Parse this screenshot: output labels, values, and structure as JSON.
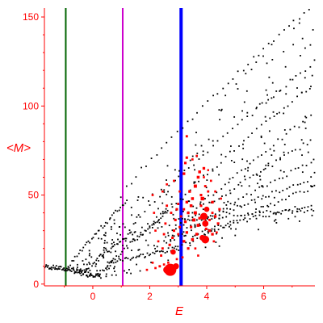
{
  "chart_data": {
    "type": "scatter",
    "title": "",
    "xlabel": "E",
    "ylabel": "<M>",
    "xlim": [
      -1.7,
      7.8
    ],
    "ylim": [
      -1,
      155
    ],
    "x_ticks": [
      0,
      2,
      4,
      6
    ],
    "x_tick_labels": [
      "0",
      "2",
      "4",
      "6"
    ],
    "y_ticks": [
      0,
      50,
      100,
      150
    ],
    "y_tick_labels": [
      "0",
      "50",
      "100",
      "150"
    ],
    "grid": false,
    "legend": "none",
    "axis_color": "#ff0000",
    "vertical_lines": [
      {
        "x": -0.95,
        "color": "#006400"
      },
      {
        "x": 1.05,
        "color": "#cc00cc"
      },
      {
        "x": 3.1,
        "color": "#0000ff"
      }
    ],
    "series": [
      {
        "color": "#000000",
        "marker": "dot",
        "bands": [
          {
            "x0": -1.7,
            "y0": 10,
            "x1": -0.7,
            "y1": 8
          },
          {
            "x0": -0.7,
            "y0": 7.5,
            "x1": 0.3,
            "y1": 4.5
          },
          {
            "x0": -0.9,
            "y0": 8,
            "x1": 1.2,
            "y1": 47
          },
          {
            "x0": -0.4,
            "y0": 6,
            "x1": 1.5,
            "y1": 30
          },
          {
            "x0": 0.2,
            "y0": 5,
            "x1": 2.6,
            "y1": 40
          },
          {
            "x0": 0.6,
            "y0": 12,
            "x1": 3.0,
            "y1": 20
          },
          {
            "x0": 1.0,
            "y0": 50,
            "x1": 7.6,
            "y1": 155
          },
          {
            "x0": 1.5,
            "y0": 35,
            "x1": 7.8,
            "y1": 125
          },
          {
            "x0": 2.0,
            "y0": 30,
            "x1": 7.8,
            "y1": 113
          },
          {
            "x0": 2.5,
            "y0": 25,
            "x1": 7.8,
            "y1": 96
          },
          {
            "x0": 2.8,
            "y0": 28,
            "x1": 7.8,
            "y1": 82
          },
          {
            "x0": 2.6,
            "y0": 22,
            "x1": 7.8,
            "y1": 70
          },
          {
            "x0": 3.2,
            "y0": 30,
            "x1": 7.8,
            "y1": 60
          },
          {
            "x0": 3.0,
            "y0": 20,
            "x1": 7.8,
            "y1": 55
          },
          {
            "x0": 3.6,
            "y0": 28,
            "x1": 7.8,
            "y1": 45
          },
          {
            "x0": 3.0,
            "y0": 36,
            "x1": 7.8,
            "y1": 42
          }
        ],
        "scatter_region": {
          "x": [
            -0.6,
            7.8
          ],
          "y": [
            4,
            150
          ]
        }
      },
      {
        "color": "#ff0000",
        "marker": "square",
        "points": [
          [
            2.72,
            8,
            5.0
          ],
          [
            2.6,
            8,
            3.0
          ],
          [
            2.92,
            10,
            2.5
          ],
          [
            2.82,
            18,
            2.2
          ],
          [
            3.95,
            25,
            3.2
          ],
          [
            3.85,
            26,
            2.4
          ],
          [
            3.9,
            38,
            3.0
          ],
          [
            3.95,
            34,
            2.6
          ],
          [
            4.0,
            42,
            2.2
          ],
          [
            3.85,
            48,
            2.0
          ],
          [
            3.6,
            55,
            1.8
          ],
          [
            3.7,
            60,
            1.6
          ],
          [
            3.75,
            63,
            1.6
          ],
          [
            3.9,
            65,
            1.5
          ],
          [
            3.2,
            62,
            1.5
          ],
          [
            3.25,
            68,
            1.4
          ],
          [
            3.3,
            71,
            1.4
          ],
          [
            3.3,
            83,
            1.3
          ],
          [
            4.2,
            46,
            1.5
          ],
          [
            4.3,
            38,
            1.5
          ],
          [
            4.4,
            34,
            1.4
          ],
          [
            4.45,
            42,
            1.4
          ],
          [
            4.1,
            30,
            1.6
          ],
          [
            4.2,
            28,
            1.5
          ],
          [
            3.6,
            40,
            1.8
          ],
          [
            3.55,
            36,
            1.8
          ],
          [
            3.7,
            33,
            1.7
          ],
          [
            3.65,
            28,
            1.6
          ],
          [
            3.5,
            25,
            1.6
          ],
          [
            3.45,
            44,
            1.6
          ],
          [
            3.5,
            48,
            1.6
          ],
          [
            3.4,
            52,
            1.5
          ],
          [
            3.3,
            46,
            1.5
          ],
          [
            3.35,
            40,
            1.5
          ],
          [
            3.25,
            35,
            1.5
          ],
          [
            3.3,
            29,
            1.5
          ],
          [
            3.2,
            24,
            1.5
          ],
          [
            3.35,
            20,
            1.4
          ],
          [
            2.95,
            42,
            1.4
          ],
          [
            2.9,
            36,
            1.4
          ],
          [
            2.85,
            30,
            1.4
          ],
          [
            2.8,
            26,
            1.4
          ],
          [
            2.7,
            22,
            1.4
          ],
          [
            2.75,
            40,
            1.3
          ],
          [
            2.6,
            44,
            1.3
          ],
          [
            2.55,
            34,
            1.3
          ],
          [
            2.5,
            28,
            1.3
          ],
          [
            2.45,
            20,
            1.3
          ],
          [
            2.4,
            16,
            1.3
          ],
          [
            2.35,
            10,
            1.3
          ],
          [
            2.2,
            9,
            1.2
          ],
          [
            2.1,
            12,
            1.2
          ],
          [
            2.3,
            24,
            1.2
          ],
          [
            2.2,
            30,
            1.2
          ],
          [
            2.15,
            40,
            1.2
          ],
          [
            2.1,
            50,
            1.2
          ],
          [
            2.45,
            52,
            1.2
          ],
          [
            2.6,
            56,
            1.2
          ],
          [
            2.85,
            58,
            1.2
          ],
          [
            3.05,
            52,
            1.2
          ],
          [
            3.05,
            32,
            1.3
          ],
          [
            3.0,
            28,
            1.3
          ],
          [
            3.0,
            45,
            1.3
          ],
          [
            4.05,
            52,
            1.3
          ],
          [
            4.15,
            58,
            1.2
          ],
          [
            4.3,
            52,
            1.2
          ],
          [
            4.1,
            36,
            1.3
          ],
          [
            3.98,
            31,
            1.4
          ],
          [
            3.8,
            44,
            1.4
          ],
          [
            3.75,
            37,
            1.5
          ],
          [
            3.8,
            50,
            1.4
          ],
          [
            3.95,
            55,
            1.3
          ],
          [
            4.5,
            48,
            1.2
          ],
          [
            4.35,
            29,
            1.2
          ],
          [
            4.25,
            24,
            1.2
          ],
          [
            3.6,
            20,
            1.2
          ],
          [
            3.7,
            16,
            1.2
          ],
          [
            3.15,
            15,
            1.2
          ],
          [
            2.95,
            14,
            1.2
          ],
          [
            2.65,
            12,
            1.2
          ],
          [
            2.5,
            11,
            1.2
          ],
          [
            1.9,
            8,
            1.2
          ],
          [
            3.5,
            70,
            1.2
          ],
          [
            3.65,
            72,
            1.2
          ],
          [
            3.9,
            60,
            1.2
          ],
          [
            4.05,
            64,
            1.1
          ],
          [
            4.2,
            40,
            1.3
          ],
          [
            3.1,
            38,
            1.3
          ],
          [
            3.2,
            42,
            1.3
          ],
          [
            3.45,
            32,
            1.4
          ]
        ]
      }
    ]
  }
}
